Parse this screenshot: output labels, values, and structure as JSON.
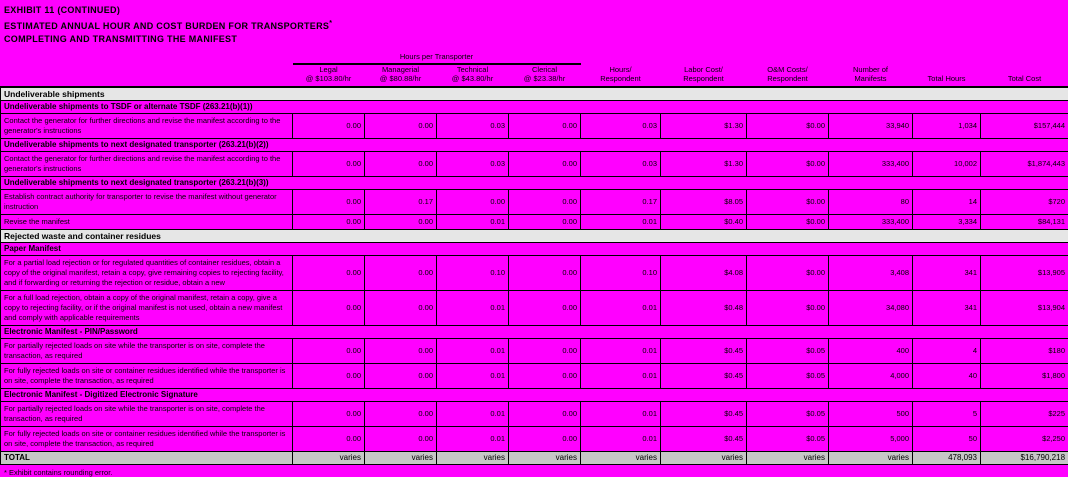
{
  "page": {
    "bg_color": "#ff00ff",
    "title_line1": "EXHIBIT 11 (CONTINUED)",
    "title_line2": "ESTIMATED ANNUAL HOUR AND COST BURDEN FOR TRANSPORTERS",
    "title_line2_superscript": "*",
    "title_line3": "COMPLETING AND TRANSMITTING THE MANIFEST",
    "footnote": "* Exhibit contains rounding error."
  },
  "table": {
    "spanner_label": "Hours per Transporter",
    "columns": [
      {
        "label": "Legal",
        "sub": "@ $103.80/hr"
      },
      {
        "label": "Managerial",
        "sub": "@ $80.88/hr"
      },
      {
        "label": "Technical",
        "sub": "@ $43.80/hr"
      },
      {
        "label": "Clerical",
        "sub": "@ $23.38/hr"
      },
      {
        "label": "Hours/",
        "sub": "Respondent"
      },
      {
        "label": "Labor Cost/",
        "sub": "Respondent"
      },
      {
        "label": "O&M Costs/",
        "sub": "Respondent"
      },
      {
        "label": "Number of",
        "sub": "Manifests"
      },
      {
        "label": "Total Hours",
        "sub": ""
      },
      {
        "label": "Total Cost",
        "sub": ""
      }
    ],
    "rows": [
      {
        "type": "section",
        "label": "Undeliverable shipments"
      },
      {
        "type": "subheader",
        "label": "Undeliverable shipments to TSDF or alternate TSDF (263.21(b)(1))"
      },
      {
        "type": "data",
        "label": "Contact the generator for further directions and revise the manifest according to the generator's instructions",
        "values": [
          "0.00",
          "0.00",
          "0.03",
          "0.00",
          "0.03",
          "$1.30",
          "$0.00",
          "33,940",
          "1,034",
          "$157,444"
        ]
      },
      {
        "type": "subheader",
        "label": "Undeliverable shipments to next designated transporter (263.21(b)(2))"
      },
      {
        "type": "data",
        "label": "Contact the generator for further directions and revise the manifest according to the generator's instructions",
        "values": [
          "0.00",
          "0.00",
          "0.03",
          "0.00",
          "0.03",
          "$1.30",
          "$0.00",
          "333,400",
          "10,002",
          "$1,874,443"
        ]
      },
      {
        "type": "subheader",
        "label": "Undeliverable shipments to next designated transporter (263.21(b)(3))"
      },
      {
        "type": "data",
        "label": "Establish contract authority for transporter to revise the manifest without generator instruction",
        "values": [
          "0.00",
          "0.17",
          "0.00",
          "0.00",
          "0.17",
          "$8.05",
          "$0.00",
          "80",
          "14",
          "$720"
        ]
      },
      {
        "type": "data",
        "label": "Revise the manifest",
        "values": [
          "0.00",
          "0.00",
          "0.01",
          "0.00",
          "0.01",
          "$0.40",
          "$0.00",
          "333,400",
          "3,334",
          "$84,131"
        ]
      },
      {
        "type": "section",
        "label": "Rejected waste and container residues"
      },
      {
        "type": "subheader",
        "label": "Paper Manifest"
      },
      {
        "type": "data",
        "label": "For a partial load rejection or for regulated quantities of container residues, obtain a copy of the original manifest, retain a copy, give remaining copies to rejecting facility, and if forwarding or returning the rejection or residue, obtain a new",
        "values": [
          "0.00",
          "0.00",
          "0.10",
          "0.00",
          "0.10",
          "$4.08",
          "$0.00",
          "3,408",
          "341",
          "$13,905"
        ]
      },
      {
        "type": "data",
        "label": "For a full load rejection, obtain a copy of the original manifest, retain a copy, give a copy to rejecting facility, or if the original manifest is not used, obtain a new manifest and comply with applicable requirements",
        "values": [
          "0.00",
          "0.00",
          "0.01",
          "0.00",
          "0.01",
          "$0.48",
          "$0.00",
          "34,080",
          "341",
          "$13,904"
        ]
      },
      {
        "type": "subheader",
        "label": "Electronic Manifest - PIN/Password"
      },
      {
        "type": "data",
        "label": "For partially rejected loads on site while the transporter is on site, complete the transaction, as required",
        "values": [
          "0.00",
          "0.00",
          "0.01",
          "0.00",
          "0.01",
          "$0.45",
          "$0.05",
          "400",
          "4",
          "$180"
        ]
      },
      {
        "type": "data",
        "label": "For fully rejected loads on site or container residues identified while the transporter is on site, complete the transaction, as required",
        "values": [
          "0.00",
          "0.00",
          "0.01",
          "0.00",
          "0.01",
          "$0.45",
          "$0.05",
          "4,000",
          "40",
          "$1,800"
        ]
      },
      {
        "type": "subheader",
        "label": "Electronic Manifest - Digitized Electronic Signature"
      },
      {
        "type": "data",
        "label": "For partially rejected loads on site while the transporter is on site, complete the transaction, as required",
        "values": [
          "0.00",
          "0.00",
          "0.01",
          "0.00",
          "0.01",
          "$0.45",
          "$0.05",
          "500",
          "5",
          "$225"
        ]
      },
      {
        "type": "data",
        "label": "For fully rejected loads on site or container residues identified while the transporter is on site, complete the transaction, as required",
        "values": [
          "0.00",
          "0.00",
          "0.01",
          "0.00",
          "0.01",
          "$0.45",
          "$0.05",
          "5,000",
          "50",
          "$2,250"
        ]
      }
    ],
    "total_row": {
      "label": "TOTAL",
      "values": [
        "varies",
        "varies",
        "varies",
        "varies",
        "varies",
        "varies",
        "varies",
        "varies",
        "478,093",
        "$16,790,218"
      ]
    }
  }
}
